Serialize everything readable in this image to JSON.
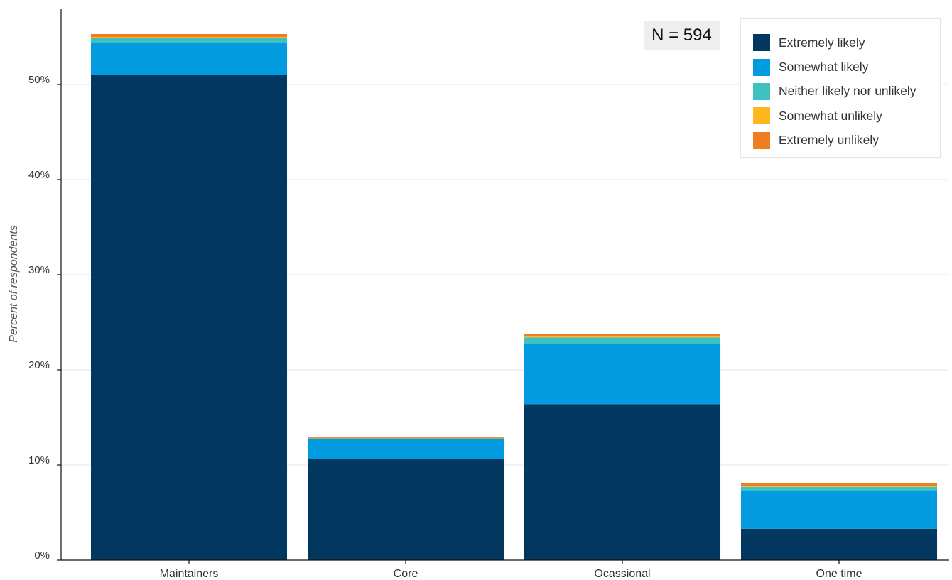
{
  "chart_data": {
    "type": "bar",
    "stacked": true,
    "categories": [
      "Maintainers",
      "Core",
      "Ocassional",
      "One time"
    ],
    "series": [
      {
        "name": "Extremely likely",
        "color": "#02375f",
        "values": [
          51.0,
          10.6,
          16.4,
          3.3
        ]
      },
      {
        "name": "Somewhat likely",
        "color": "#029be0",
        "values": [
          3.4,
          2.2,
          6.3,
          4.0
        ]
      },
      {
        "name": "Neither likely nor unlikely",
        "color": "#3fc1c2",
        "values": [
          0.5,
          0.0,
          0.7,
          0.4
        ]
      },
      {
        "name": "Somewhat unlikely",
        "color": "#fbb71c",
        "values": [
          0.1,
          0.05,
          0.1,
          0.1
        ]
      },
      {
        "name": "Extremely unlikely",
        "color": "#ef7d21",
        "values": [
          0.3,
          0.1,
          0.3,
          0.3
        ]
      }
    ],
    "xlabel": "",
    "ylabel": "Percent of respondents",
    "ylim": [
      0,
      55
    ],
    "yticks": [
      0,
      10,
      20,
      30,
      40,
      50
    ],
    "ytick_labels": [
      "0%",
      "10%",
      "20%",
      "30%",
      "40%",
      "50%"
    ],
    "grid": true,
    "legend_position": "top-right",
    "annotation": "N = 594"
  }
}
